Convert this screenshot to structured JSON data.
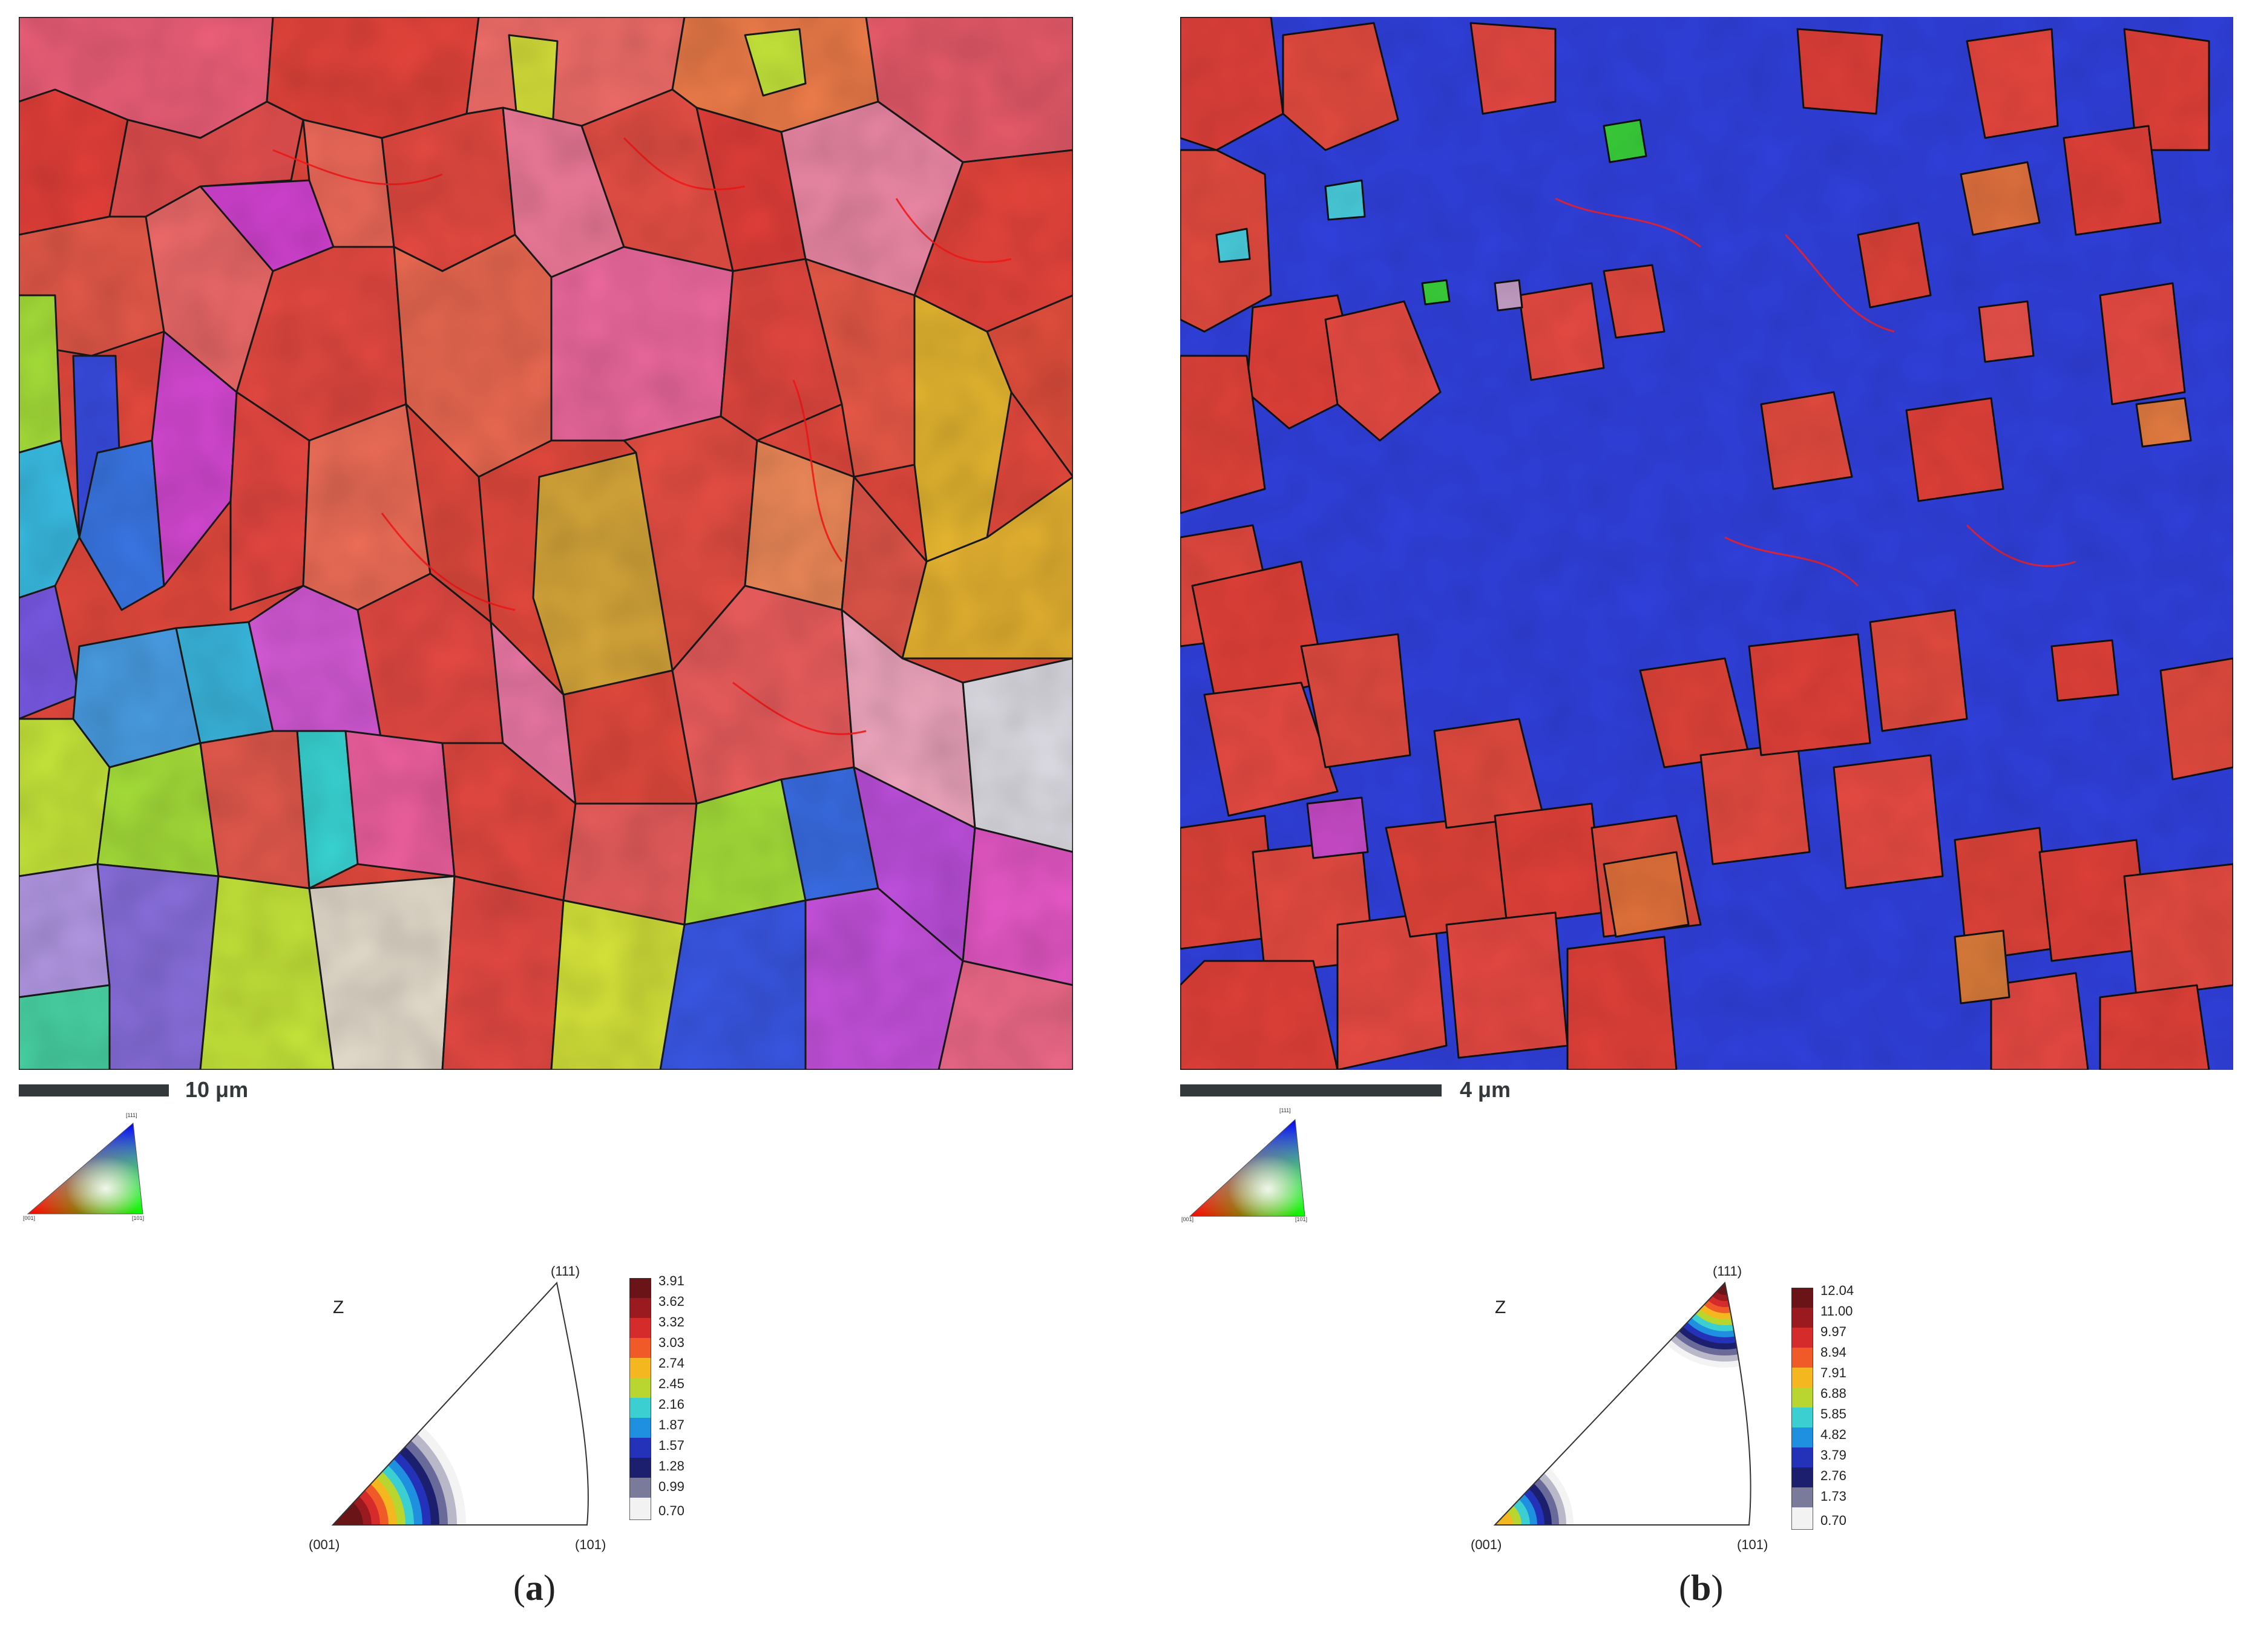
{
  "panels": [
    {
      "id": "a",
      "scale_label": "10 μm",
      "dominant_colors": [
        "#e8443a",
        "#f06a8c",
        "#d7a23a",
        "#a8e23a",
        "#3a6ee8"
      ],
      "ipf_key": {
        "top": "[111]",
        "left": "[001]",
        "right": "[101]"
      },
      "ipf": {
        "sample_axis": "Z",
        "top": "(111)",
        "left": "(001)",
        "right": "(101)",
        "colorbar_ticks": [
          "3.91",
          "3.62",
          "3.32",
          "3.03",
          "2.74",
          "2.45",
          "2.16",
          "1.87",
          "1.57",
          "1.28",
          "0.99",
          "0.70"
        ]
      },
      "label_open": "(",
      "label_letter": "a",
      "label_close": ")"
    },
    {
      "id": "b",
      "scale_label": "4 μm",
      "dominant_colors": [
        "#2e3ee0",
        "#e03a36",
        "#e05a4a",
        "#3ad03a"
      ],
      "ipf_key": {
        "top": "[111]",
        "left": "[001]",
        "right": "[101]"
      },
      "ipf": {
        "sample_axis": "Z",
        "top": "(111)",
        "left": "(001)",
        "right": "(101)",
        "colorbar_ticks": [
          "12.04",
          "11.00",
          "9.97",
          "8.94",
          "7.91",
          "6.88",
          "5.85",
          "4.82",
          "3.79",
          "2.76",
          "1.73",
          "0.70"
        ]
      },
      "label_open": "(",
      "label_letter": "b",
      "label_close": ")"
    }
  ],
  "colorbar_colors": [
    "#6b1418",
    "#9a1a1f",
    "#d62b2b",
    "#f05a28",
    "#f5b71f",
    "#b8d62f",
    "#3ccfd2",
    "#1f8fe0",
    "#2332b8",
    "#1b1f6e",
    "#7a7a9a",
    "#f2f2f2"
  ]
}
